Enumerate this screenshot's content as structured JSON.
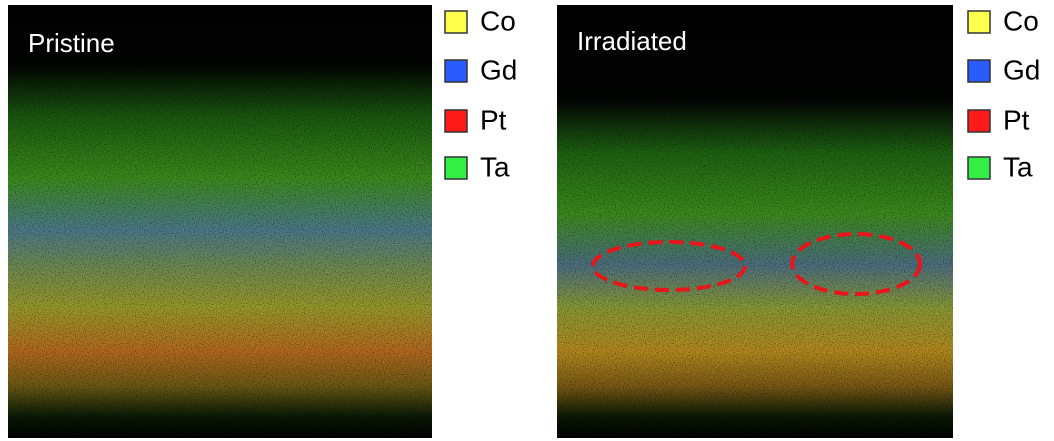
{
  "panels": [
    {
      "label": "Pristine",
      "legend": [
        {
          "label": "Co",
          "color": "#ffff4d"
        },
        {
          "label": "Gd",
          "color": "#2a5bff"
        },
        {
          "label": "Pt",
          "color": "#ff1a1a"
        },
        {
          "label": "Ta",
          "color": "#33ee44"
        }
      ]
    },
    {
      "label": "Irradiated",
      "legend": [
        {
          "label": "Co",
          "color": "#ffff4d"
        },
        {
          "label": "Gd",
          "color": "#2a5bff"
        },
        {
          "label": "Pt",
          "color": "#ff1a1a"
        },
        {
          "label": "Ta",
          "color": "#33ee44"
        }
      ]
    }
  ]
}
